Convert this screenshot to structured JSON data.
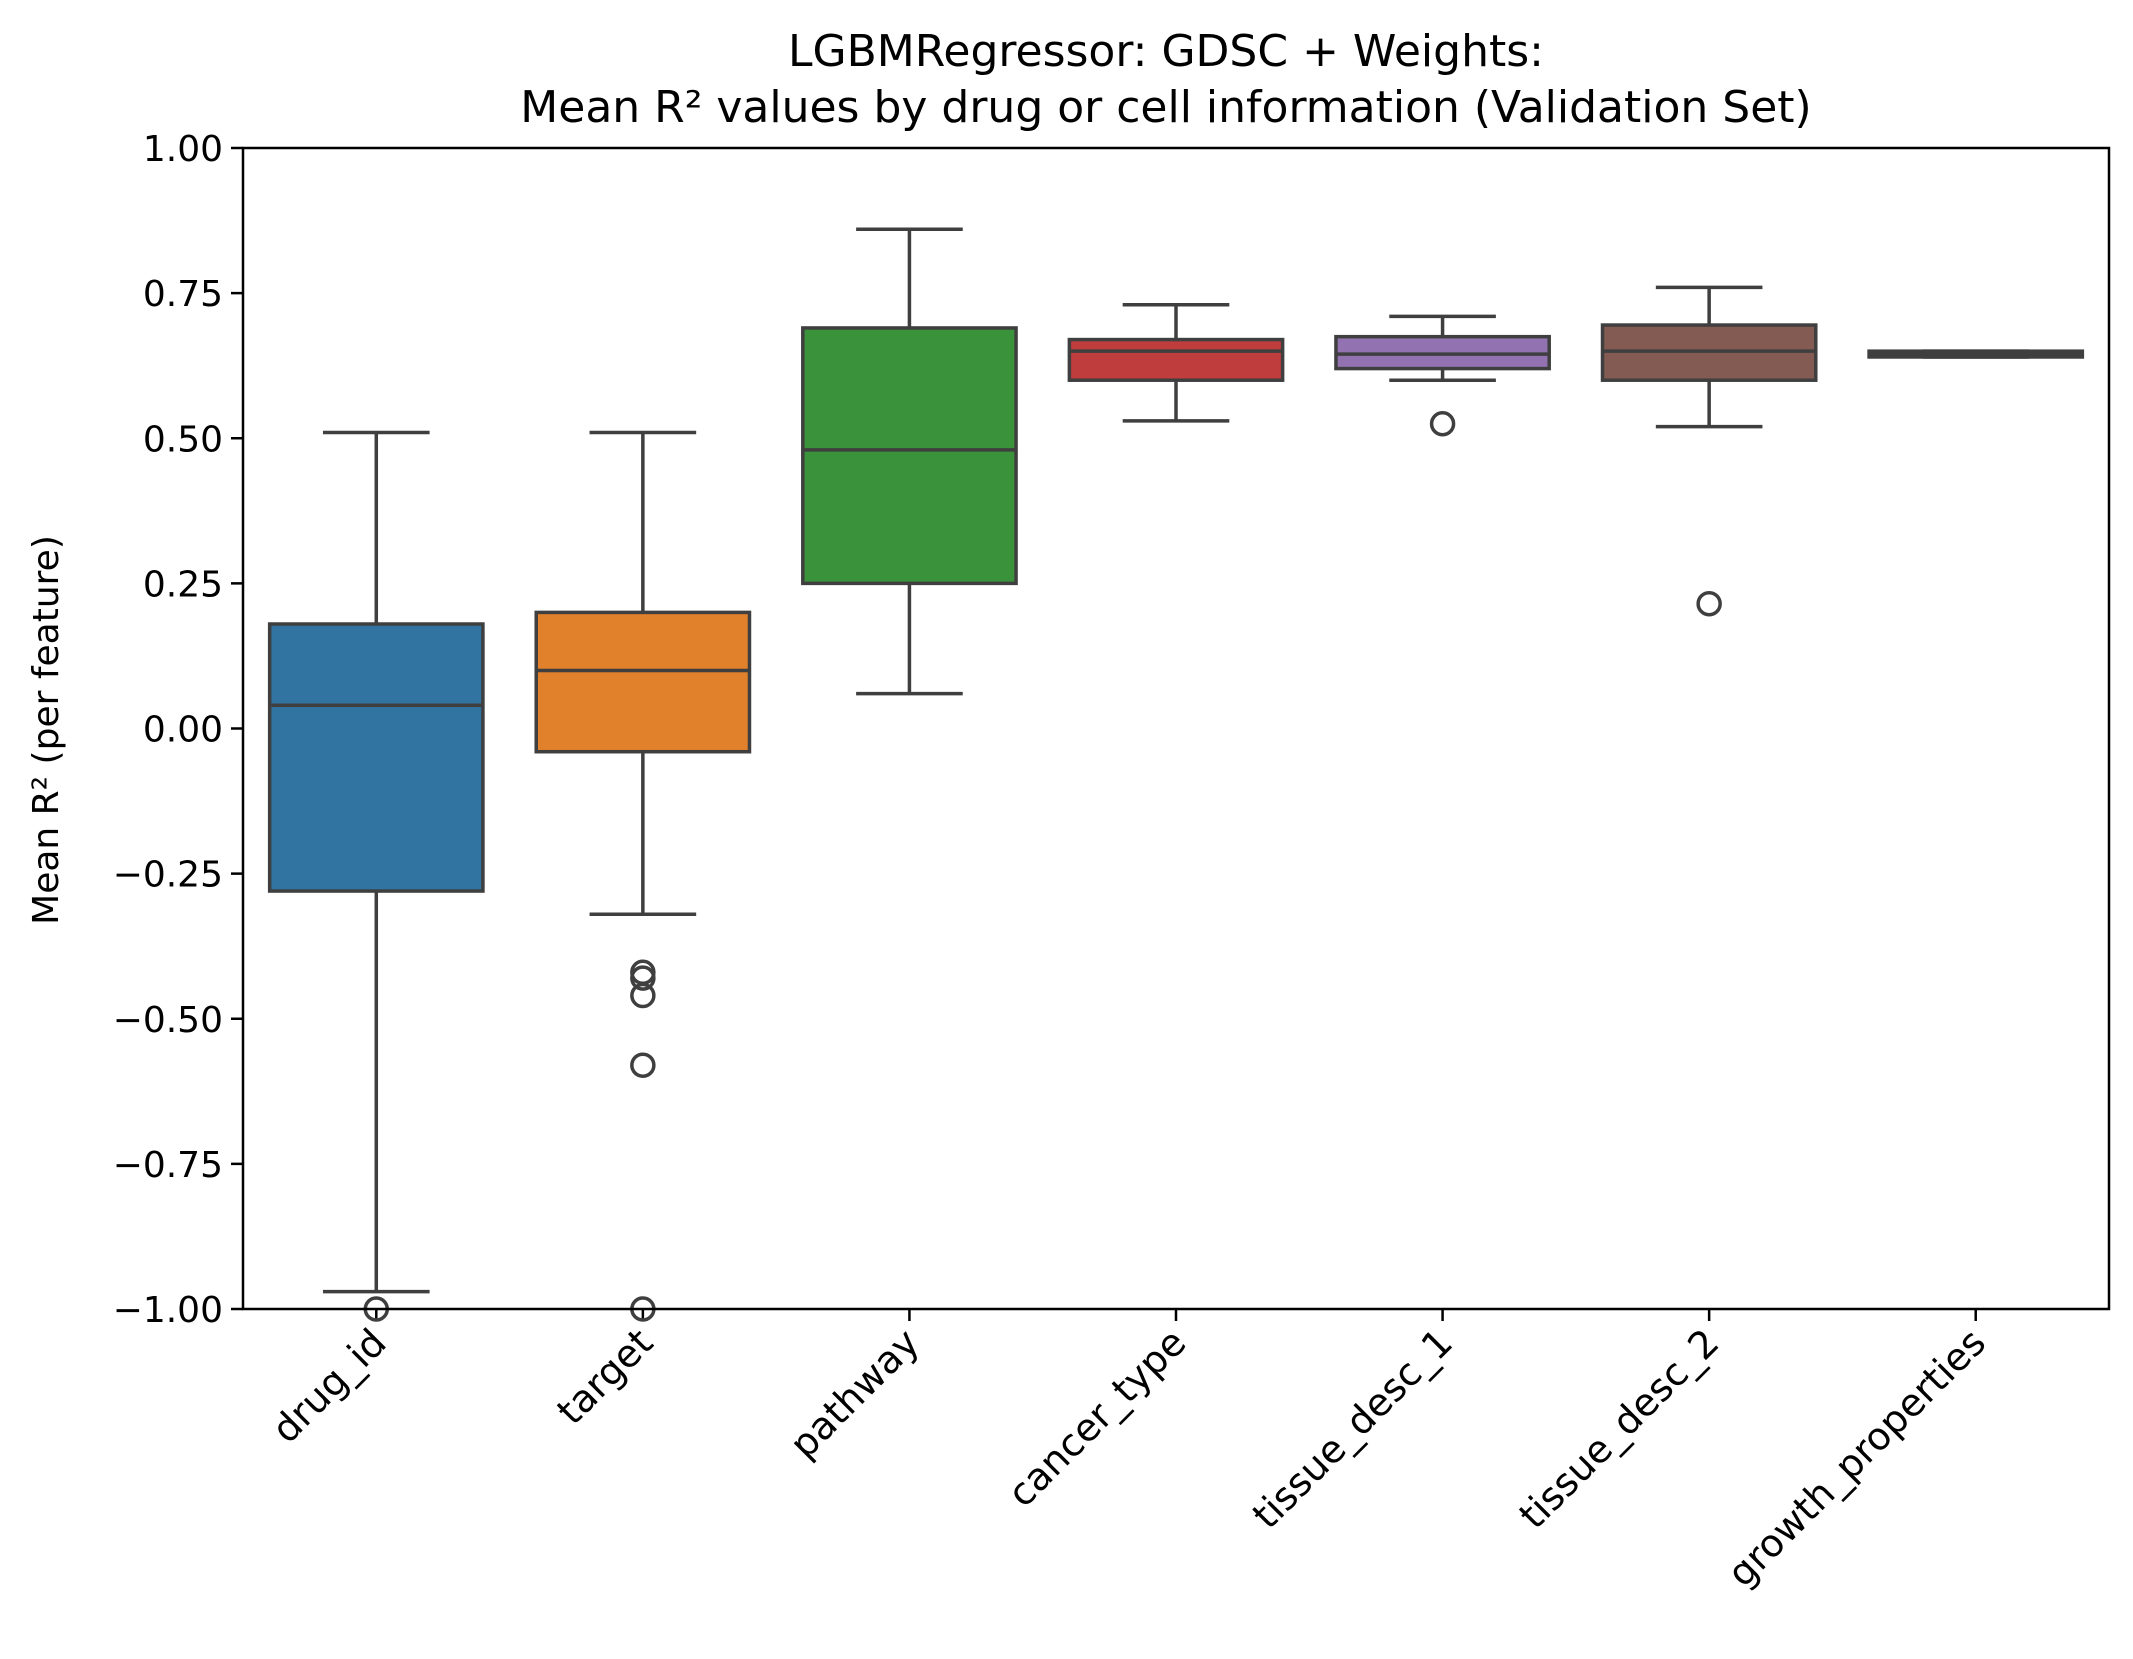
{
  "chart_data": {
    "type": "box",
    "title_lines": [
      "LGBMRegressor: GDSC + Weights:",
      "Mean R² values by drug or cell information (Validation Set)"
    ],
    "xlabel": "",
    "ylabel": "Mean R² (per feature)",
    "ylim": [
      -1.0,
      1.0
    ],
    "yticks": [
      -1.0,
      -0.75,
      -0.5,
      -0.25,
      0.0,
      0.25,
      0.5,
      0.75,
      1.0
    ],
    "ytick_labels": [
      "−1.00",
      "−0.75",
      "−0.50",
      "−0.25",
      "0.00",
      "0.25",
      "0.50",
      "0.75",
      "1.00"
    ],
    "categories": [
      "drug_id",
      "target",
      "pathway",
      "cancer_type",
      "tissue_desc_1",
      "tissue_desc_2",
      "growth_properties"
    ],
    "boxes": [
      {
        "category": "drug_id",
        "color": "#3274a1",
        "whislo": -0.97,
        "q1": -0.28,
        "median": 0.04,
        "q3": 0.18,
        "whishi": 0.51,
        "fliers": [
          -1.0
        ]
      },
      {
        "category": "target",
        "color": "#e1812c",
        "whislo": -0.32,
        "q1": -0.04,
        "median": 0.1,
        "q3": 0.2,
        "whishi": 0.51,
        "fliers": [
          -0.42,
          -0.43,
          -0.46,
          -0.58,
          -1.0
        ]
      },
      {
        "category": "pathway",
        "color": "#3a923a",
        "whislo": 0.06,
        "q1": 0.25,
        "median": 0.48,
        "q3": 0.69,
        "whishi": 0.86,
        "fliers": []
      },
      {
        "category": "cancer_type",
        "color": "#c03d3e",
        "whislo": 0.53,
        "q1": 0.6,
        "median": 0.65,
        "q3": 0.67,
        "whishi": 0.73,
        "fliers": []
      },
      {
        "category": "tissue_desc_1",
        "color": "#9372b2",
        "whislo": 0.6,
        "q1": 0.62,
        "median": 0.645,
        "q3": 0.675,
        "whishi": 0.71,
        "fliers": [
          0.525
        ]
      },
      {
        "category": "tissue_desc_2",
        "color": "#845b53",
        "whislo": 0.52,
        "q1": 0.6,
        "median": 0.65,
        "q3": 0.695,
        "whishi": 0.76,
        "fliers": [
          0.215
        ]
      },
      {
        "category": "growth_properties",
        "color": "#d684bd",
        "whislo": 0.64,
        "q1": 0.64,
        "median": 0.645,
        "q3": 0.65,
        "whishi": 0.65,
        "fliers": []
      }
    ],
    "grid": false,
    "legend": "none"
  }
}
